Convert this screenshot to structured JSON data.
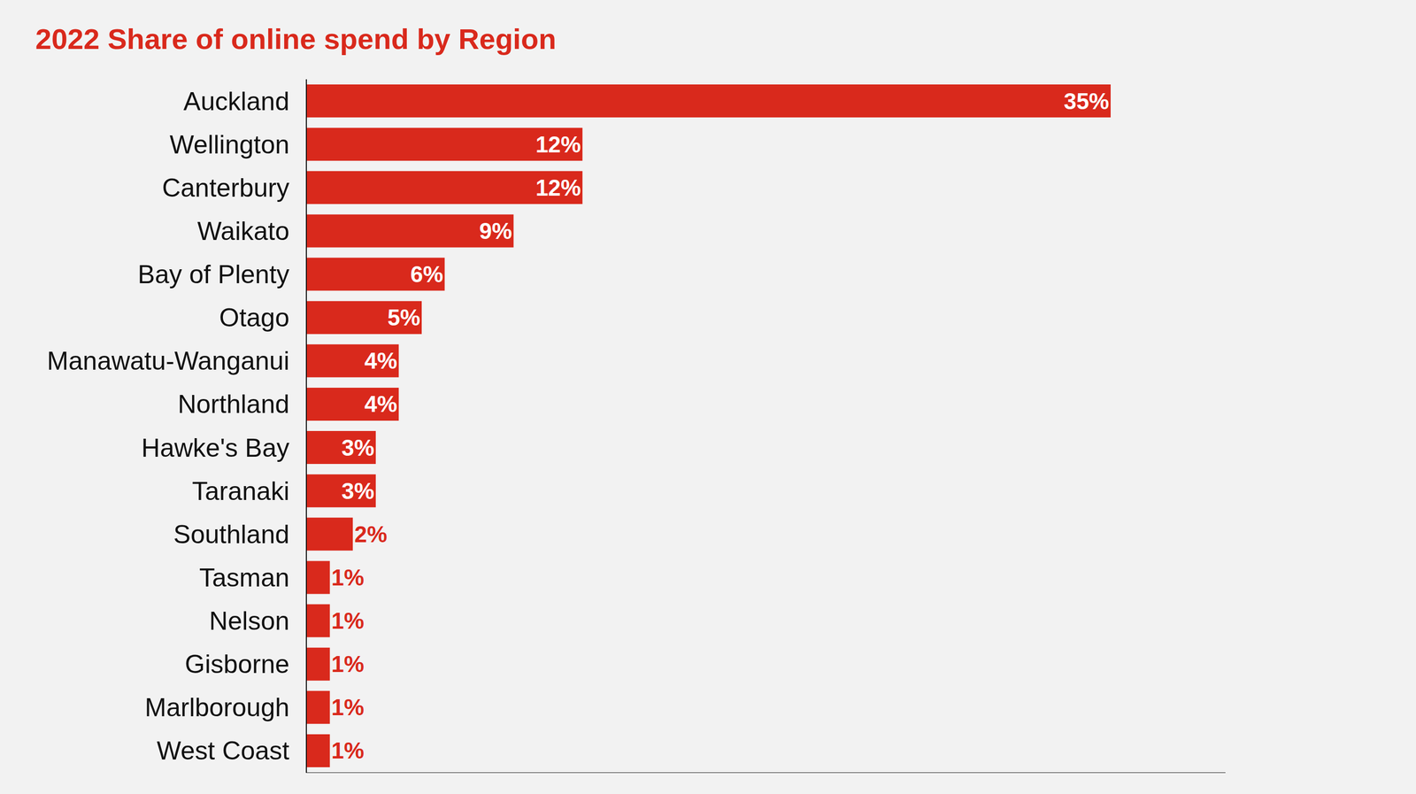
{
  "chart_data": {
    "type": "bar",
    "title": "2022 Share of online spend by Region",
    "orientation": "horizontal",
    "categories": [
      "Auckland",
      "Wellington",
      "Canterbury",
      "Waikato",
      "Bay of Plenty",
      "Otago",
      "Manawatu-Wanganui",
      "Northland",
      "Hawke's Bay",
      "Taranaki",
      "Southland",
      "Tasman",
      "Nelson",
      "Gisborne",
      "Marlborough",
      "West Coast"
    ],
    "values": [
      35,
      12,
      12,
      9,
      6,
      5,
      4,
      4,
      3,
      3,
      2,
      1,
      1,
      1,
      1,
      1
    ],
    "value_labels": [
      "35%",
      "12%",
      "12%",
      "9%",
      "6%",
      "5%",
      "4%",
      "4%",
      "3%",
      "3%",
      "2%",
      "1%",
      "1%",
      "1%",
      "1%",
      "1%"
    ],
    "data_labels": true,
    "color": "#d9291c",
    "xlim": [
      0,
      40
    ],
    "xticks": [],
    "tick_labels": "y",
    "grid": false
  }
}
